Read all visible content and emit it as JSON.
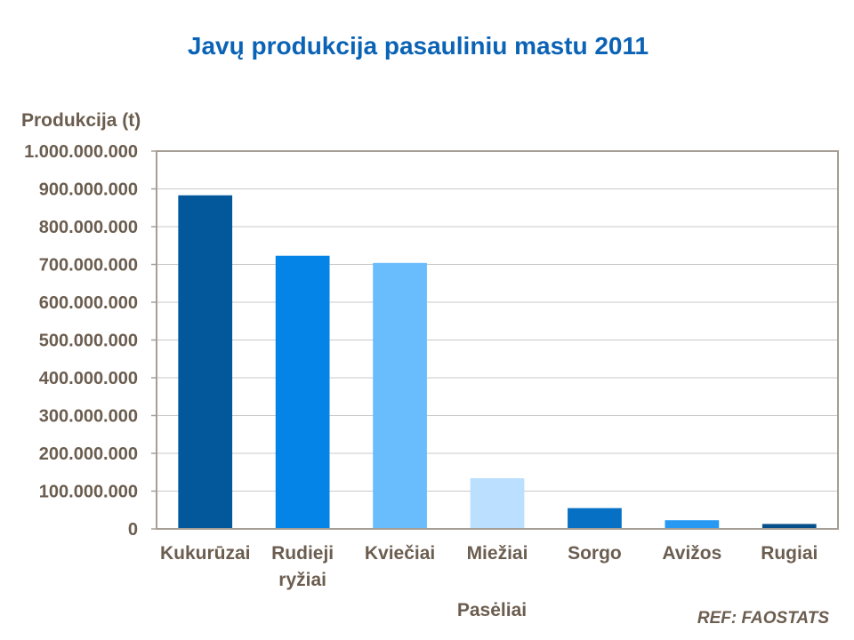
{
  "chart_data": {
    "type": "bar",
    "title": "Javų produkcija pasauliniu mastu 2011",
    "ylabel": "Produkcija (t)",
    "xlabel": "Pasėliai",
    "source": "REF: FAOSTATS",
    "categories": [
      [
        "Kukurūzai"
      ],
      [
        "Rudieji",
        "ryžiai"
      ],
      [
        "Kviečiai"
      ],
      [
        "Miežiai"
      ],
      [
        "Sorgo"
      ],
      [
        "Avižos"
      ],
      [
        "Rugiai"
      ]
    ],
    "values": [
      883000000,
      723000000,
      704000000,
      134000000,
      55000000,
      23000000,
      13000000
    ],
    "colors": [
      "#03589b",
      "#0584e8",
      "#6abdfd",
      "#bbdffe",
      "#0670c4",
      "#2899f2",
      "#074f88"
    ],
    "ylim": [
      0,
      1000000000
    ],
    "yticks": [
      0,
      100000000,
      200000000,
      300000000,
      400000000,
      500000000,
      600000000,
      700000000,
      800000000,
      900000000,
      1000000000
    ],
    "ytick_labels": [
      "0",
      "100.000.000",
      "200.000.000",
      "300.000.000",
      "400.000.000",
      "500.000.000",
      "600.000.000",
      "700.000.000",
      "800.000.000",
      "900.000.000",
      "1.000.000.000"
    ],
    "grid": true,
    "legend": "none"
  }
}
